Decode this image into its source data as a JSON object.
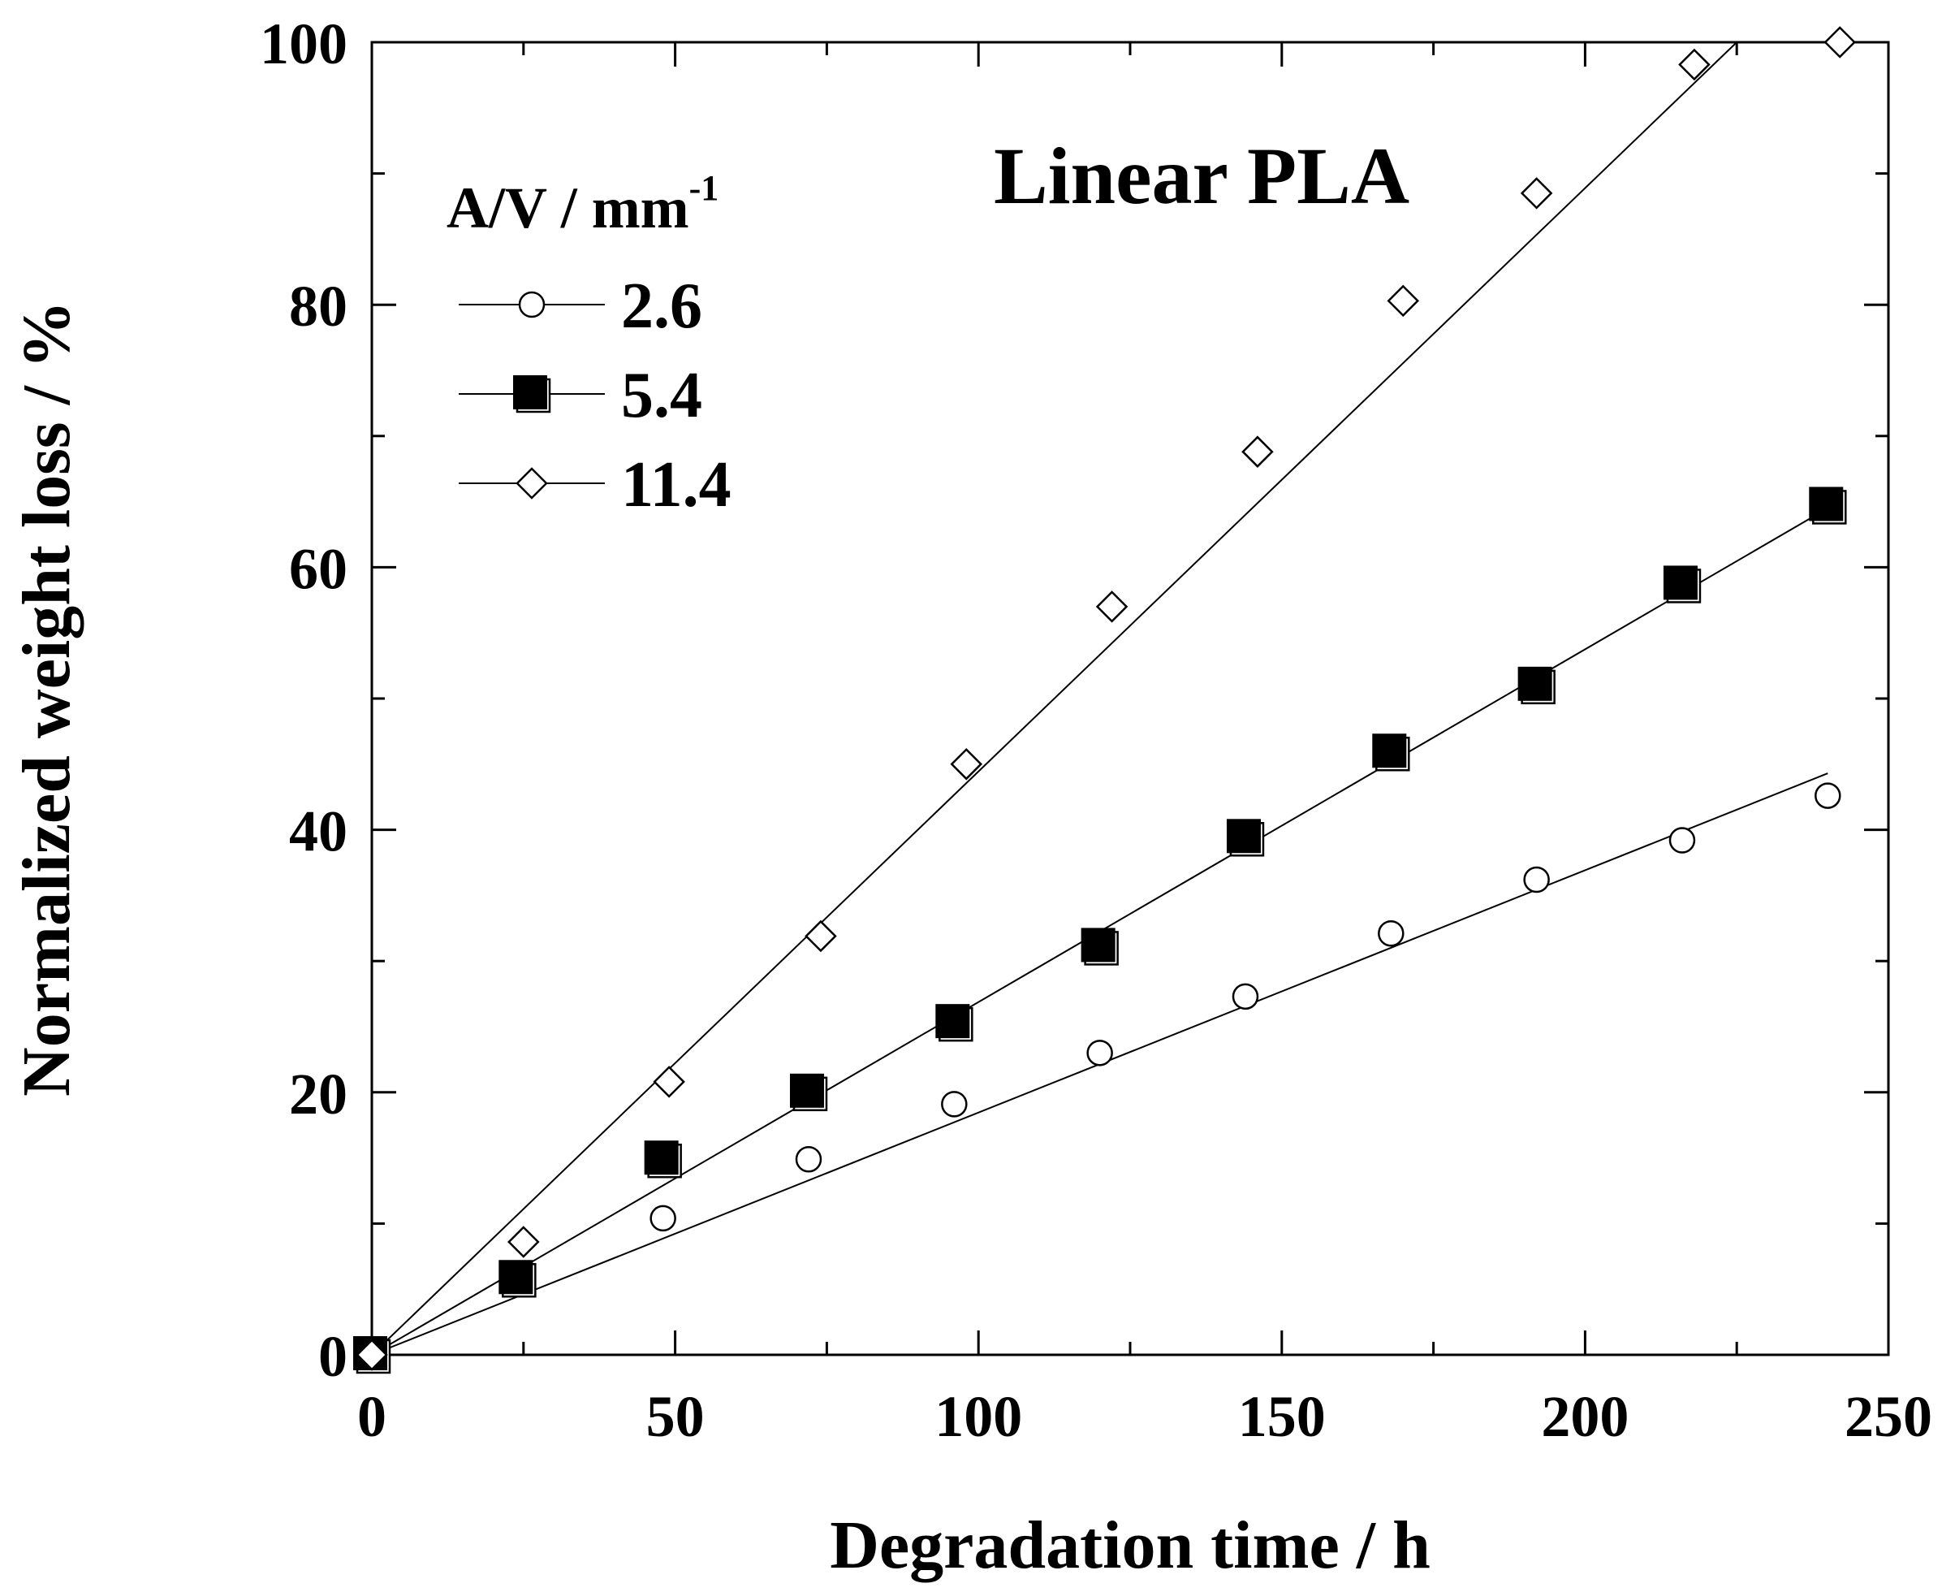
{
  "chart_data": {
    "type": "scatter",
    "title": "Linear PLA",
    "xlabel": "Degradation time / h",
    "ylabel": "Normalized weight loss / %",
    "xlim": [
      0,
      250
    ],
    "ylim": [
      0,
      100
    ],
    "x_ticks": [
      0,
      50,
      100,
      150,
      200,
      250
    ],
    "y_ticks": [
      0,
      20,
      40,
      60,
      80,
      100
    ],
    "grid": false,
    "legend": {
      "title_main": "A/V / mm",
      "title_sup": "-1",
      "placement": "top-left"
    },
    "series": [
      {
        "name": "2.6",
        "marker": "circle",
        "filled": false,
        "x": [
          0,
          24,
          48,
          72,
          96,
          120,
          144,
          168,
          192,
          216,
          240
        ],
        "y": [
          0,
          5.5,
          10.4,
          14.9,
          19.1,
          23.0,
          27.3,
          32.1,
          36.2,
          39.2,
          42.6
        ],
        "fit": {
          "x": [
            0,
            240
          ],
          "y": [
            0,
            44.3
          ]
        }
      },
      {
        "name": "5.4",
        "marker": "square",
        "filled": true,
        "x": [
          0,
          24,
          48,
          72,
          96,
          120,
          144,
          168,
          192,
          216,
          240
        ],
        "y": [
          0,
          5.8,
          14.9,
          20.0,
          25.3,
          31.1,
          39.4,
          45.9,
          51.0,
          58.7,
          64.7
        ],
        "fit": {
          "x": [
            0,
            240
          ],
          "y": [
            0,
            64.5
          ]
        }
      },
      {
        "name": "11.4",
        "marker": "diamond",
        "filled": false,
        "x": [
          0,
          25,
          49,
          74,
          98,
          122,
          146,
          170,
          192,
          218,
          242
        ],
        "y": [
          0,
          8.6,
          20.8,
          31.9,
          45.0,
          57.0,
          68.8,
          80.3,
          88.5,
          98.3,
          100.0
        ],
        "fit": {
          "x": [
            0,
            225
          ],
          "y": [
            0,
            100
          ]
        }
      }
    ]
  }
}
